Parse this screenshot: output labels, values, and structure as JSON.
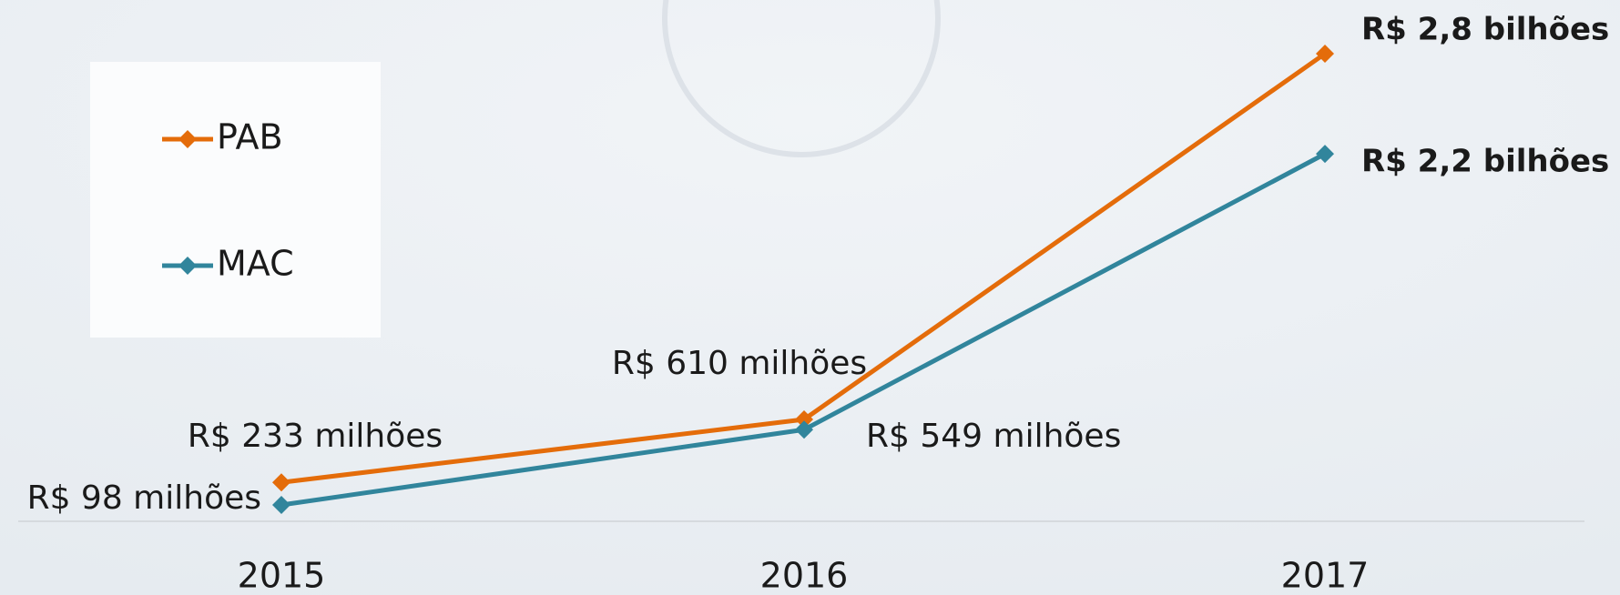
{
  "chart_data": {
    "type": "line",
    "categories": [
      "2015",
      "2016",
      "2017"
    ],
    "series": [
      {
        "name": "PAB",
        "color": "#e46c0a",
        "values": [
          233000000,
          610000000,
          2800000000
        ],
        "value_labels": [
          "R$ 233 milhões",
          "R$ 610 milhões",
          "R$ 2,8 bilhões"
        ]
      },
      {
        "name": "MAC",
        "color": "#31859c",
        "values": [
          98000000,
          549000000,
          2200000000
        ],
        "value_labels": [
          "R$ 98 milhões",
          "R$ 549 milhões",
          "R$ 2,2 bilhões"
        ]
      }
    ],
    "legend": "left"
  }
}
